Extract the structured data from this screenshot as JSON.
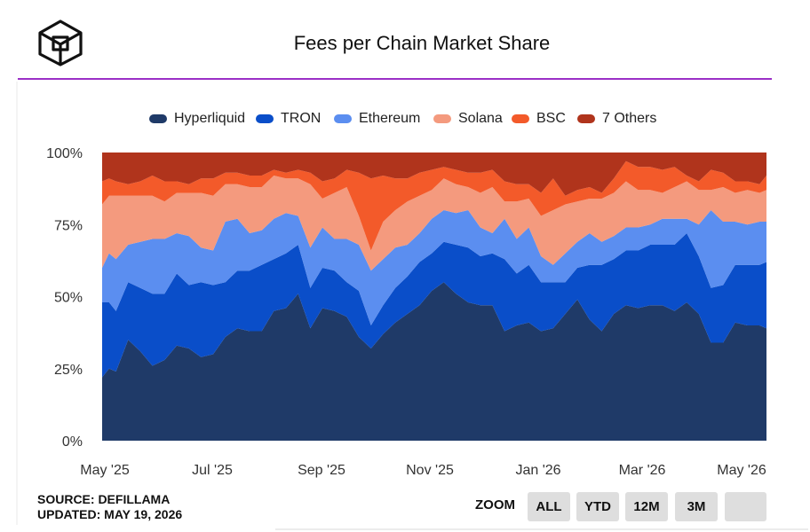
{
  "header": {
    "title": "Fees per Chain Market Share",
    "brand_color": "#111111",
    "accent_rule_color": "#9b2fc6"
  },
  "footer": {
    "source_line": "SOURCE: DEFILLAMA",
    "updated_line": "UPDATED: MAY 19, 2026",
    "zoom_label": "ZOOM",
    "zoom_buttons": [
      "ALL",
      "YTD",
      "12M",
      "3M",
      ""
    ]
  },
  "chart_data": {
    "type": "area",
    "stacked": true,
    "normalized": true,
    "title": "Fees per Chain Market Share",
    "ylim": [
      0,
      100
    ],
    "y_ticks": [
      "0%",
      "25%",
      "50%",
      "75%",
      "100%"
    ],
    "x_ticks": [
      "May '25",
      "Jul '25",
      "Sep '25",
      "Nov '25",
      "Jan '26",
      "Mar '26",
      "May '26"
    ],
    "legend_position": "top-center",
    "grid": false,
    "x": [
      "2025-05-01",
      "2025-05-05",
      "2025-05-09",
      "2025-05-16",
      "2025-05-23",
      "2025-05-30",
      "2025-06-06",
      "2025-06-13",
      "2025-06-20",
      "2025-06-27",
      "2025-07-04",
      "2025-07-11",
      "2025-07-18",
      "2025-07-25",
      "2025-08-01",
      "2025-08-08",
      "2025-08-15",
      "2025-08-22",
      "2025-08-29",
      "2025-09-05",
      "2025-09-12",
      "2025-09-19",
      "2025-09-26",
      "2025-10-03",
      "2025-10-10",
      "2025-10-17",
      "2025-10-24",
      "2025-10-31",
      "2025-11-07",
      "2025-11-14",
      "2025-11-21",
      "2025-11-28",
      "2025-12-05",
      "2025-12-12",
      "2025-12-19",
      "2025-12-26",
      "2026-01-02",
      "2026-01-09",
      "2026-01-16",
      "2026-01-23",
      "2026-01-30",
      "2026-02-06",
      "2026-02-13",
      "2026-02-20",
      "2026-02-27",
      "2026-03-06",
      "2026-03-13",
      "2026-03-20",
      "2026-03-27",
      "2026-04-03",
      "2026-04-10",
      "2026-04-17",
      "2026-04-24",
      "2026-05-01",
      "2026-05-08",
      "2026-05-15",
      "2026-05-19"
    ],
    "series": [
      {
        "name": "Hyperliquid",
        "color": "#1f3a68",
        "values": [
          22,
          25,
          24,
          35,
          31,
          26,
          28,
          33,
          32,
          29,
          30,
          36,
          39,
          38,
          38,
          45,
          46,
          51,
          39,
          46,
          45,
          43,
          36,
          32,
          37,
          41,
          44,
          47,
          52,
          55,
          51,
          48,
          47,
          47,
          38,
          40,
          41,
          38,
          39,
          44,
          49,
          42,
          38,
          44,
          47,
          46,
          47,
          47,
          45,
          48,
          44,
          34,
          34,
          41,
          40,
          40,
          39
        ]
      },
      {
        "name": "TRON",
        "color": "#0a4ec9",
        "values": [
          26,
          23,
          21,
          20,
          22,
          25,
          23,
          25,
          22,
          26,
          24,
          19,
          20,
          21,
          23,
          18,
          19,
          17,
          14,
          14,
          14,
          12,
          16,
          8,
          10,
          12,
          13,
          15,
          13,
          14,
          17,
          19,
          17,
          18,
          25,
          18,
          20,
          17,
          16,
          11,
          11,
          19,
          23,
          19,
          19,
          20,
          21,
          21,
          23,
          24,
          20,
          19,
          20,
          20,
          21,
          21,
          23
        ]
      },
      {
        "name": "Ethereum",
        "color": "#5b8ef0",
        "values": [
          12,
          17,
          18,
          13,
          16,
          19,
          19,
          14,
          17,
          12,
          12,
          21,
          18,
          13,
          12,
          14,
          14,
          10,
          14,
          14,
          11,
          15,
          16,
          19,
          16,
          14,
          11,
          10,
          12,
          11,
          11,
          13,
          10,
          7,
          14,
          12,
          13,
          9,
          6,
          10,
          9,
          11,
          8,
          8,
          8,
          8,
          7,
          9,
          9,
          5,
          11,
          27,
          22,
          15,
          14,
          15,
          14
        ]
      },
      {
        "name": "Solana",
        "color": "#f49a7e",
        "values": [
          22,
          20,
          22,
          17,
          16,
          15,
          13,
          14,
          15,
          19,
          19,
          13,
          12,
          16,
          15,
          15,
          12,
          13,
          22,
          10,
          16,
          18,
          10,
          7,
          13,
          13,
          15,
          13,
          10,
          11,
          10,
          8,
          12,
          16,
          6,
          13,
          10,
          14,
          19,
          17,
          14,
          12,
          15,
          15,
          16,
          13,
          12,
          9,
          11,
          13,
          12,
          7,
          12,
          10,
          12,
          10,
          11
        ]
      },
      {
        "name": "BSC",
        "color": "#f35a2a",
        "values": [
          8,
          6,
          5,
          4,
          5,
          7,
          7,
          4,
          3,
          5,
          6,
          4,
          4,
          4,
          4,
          2,
          2,
          3,
          4,
          6,
          5,
          6,
          15,
          25,
          16,
          11,
          8,
          8,
          7,
          4,
          5,
          5,
          7,
          6,
          7,
          6,
          5,
          8,
          11,
          3,
          4,
          4,
          2,
          5,
          7,
          8,
          8,
          8,
          7,
          2,
          3,
          7,
          5,
          4,
          3,
          3,
          5
        ]
      },
      {
        "name": "7 Others",
        "color": "#b0341c",
        "values": [
          10,
          9,
          10,
          11,
          10,
          8,
          10,
          10,
          11,
          9,
          9,
          7,
          7,
          8,
          8,
          6,
          7,
          6,
          7,
          10,
          9,
          6,
          7,
          9,
          8,
          9,
          9,
          7,
          6,
          5,
          6,
          7,
          7,
          6,
          10,
          11,
          11,
          14,
          9,
          15,
          13,
          12,
          14,
          9,
          3,
          5,
          5,
          6,
          5,
          8,
          10,
          6,
          7,
          10,
          10,
          11,
          8
        ]
      }
    ]
  }
}
